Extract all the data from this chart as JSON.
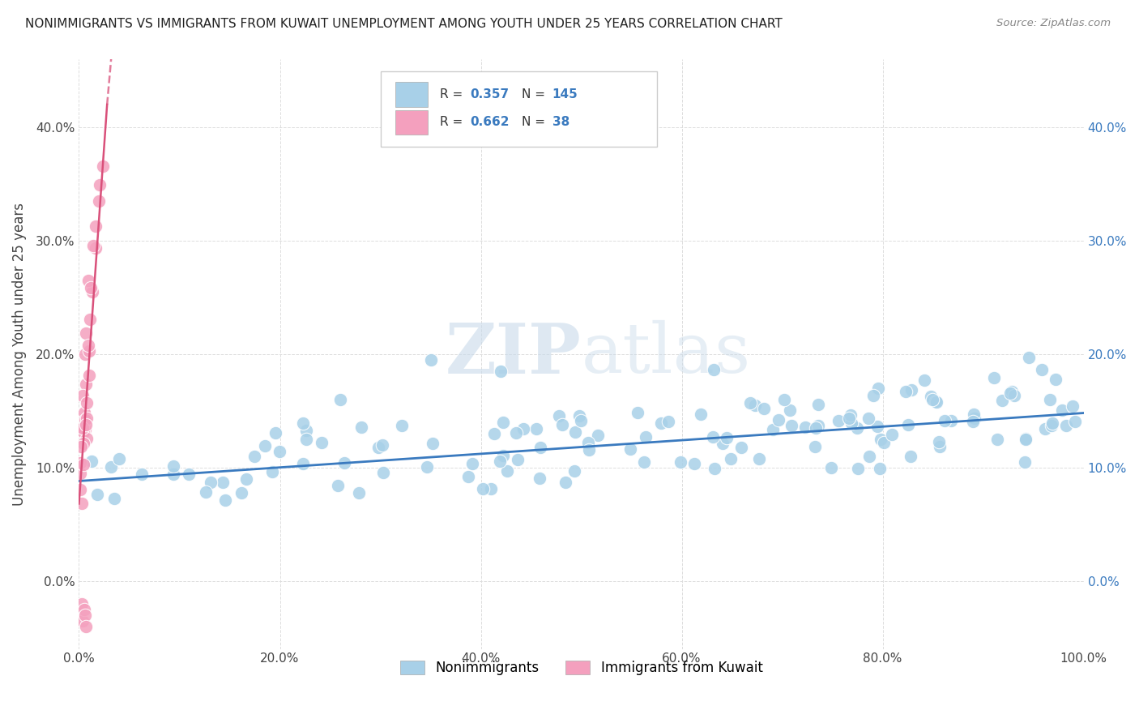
{
  "title": "NONIMMIGRANTS VS IMMIGRANTS FROM KUWAIT UNEMPLOYMENT AMONG YOUTH UNDER 25 YEARS CORRELATION CHART",
  "source": "Source: ZipAtlas.com",
  "ylabel": "Unemployment Among Youth under 25 years",
  "xlim": [
    0.0,
    1.0
  ],
  "ylim": [
    -0.06,
    0.46
  ],
  "yticks": [
    0.0,
    0.1,
    0.2,
    0.3,
    0.4
  ],
  "ytick_labels": [
    "0.0%",
    "10.0%",
    "20.0%",
    "30.0%",
    "40.0%"
  ],
  "xticks": [
    0.0,
    0.2,
    0.4,
    0.6,
    0.8,
    1.0
  ],
  "xtick_labels": [
    "0.0%",
    "20.0%",
    "40.0%",
    "60.0%",
    "80.0%",
    "100.0%"
  ],
  "blue_R": 0.357,
  "blue_N": 145,
  "pink_R": 0.662,
  "pink_N": 38,
  "blue_color": "#a8d0e8",
  "pink_color": "#f4a0be",
  "blue_line_color": "#3a7abf",
  "pink_line_color": "#d9507a",
  "right_tick_color": "#3a7abf",
  "background_color": "#ffffff",
  "grid_color": "#dddddd",
  "title_color": "#222222",
  "axis_label_color": "#444444",
  "watermark_color": "#c8daea",
  "blue_seed": 42,
  "pink_seed": 99,
  "blue_line_y0": 0.088,
  "blue_line_y1": 0.148,
  "pink_line_x0": 0.0,
  "pink_line_x1": 0.028,
  "pink_line_y0": 0.068,
  "pink_line_y1": 0.42,
  "pink_line_dash_x1": 0.032,
  "pink_line_dash_y1": 0.46,
  "legend_label_blue": "Nonimmigrants",
  "legend_label_pink": "Immigrants from Kuwait"
}
